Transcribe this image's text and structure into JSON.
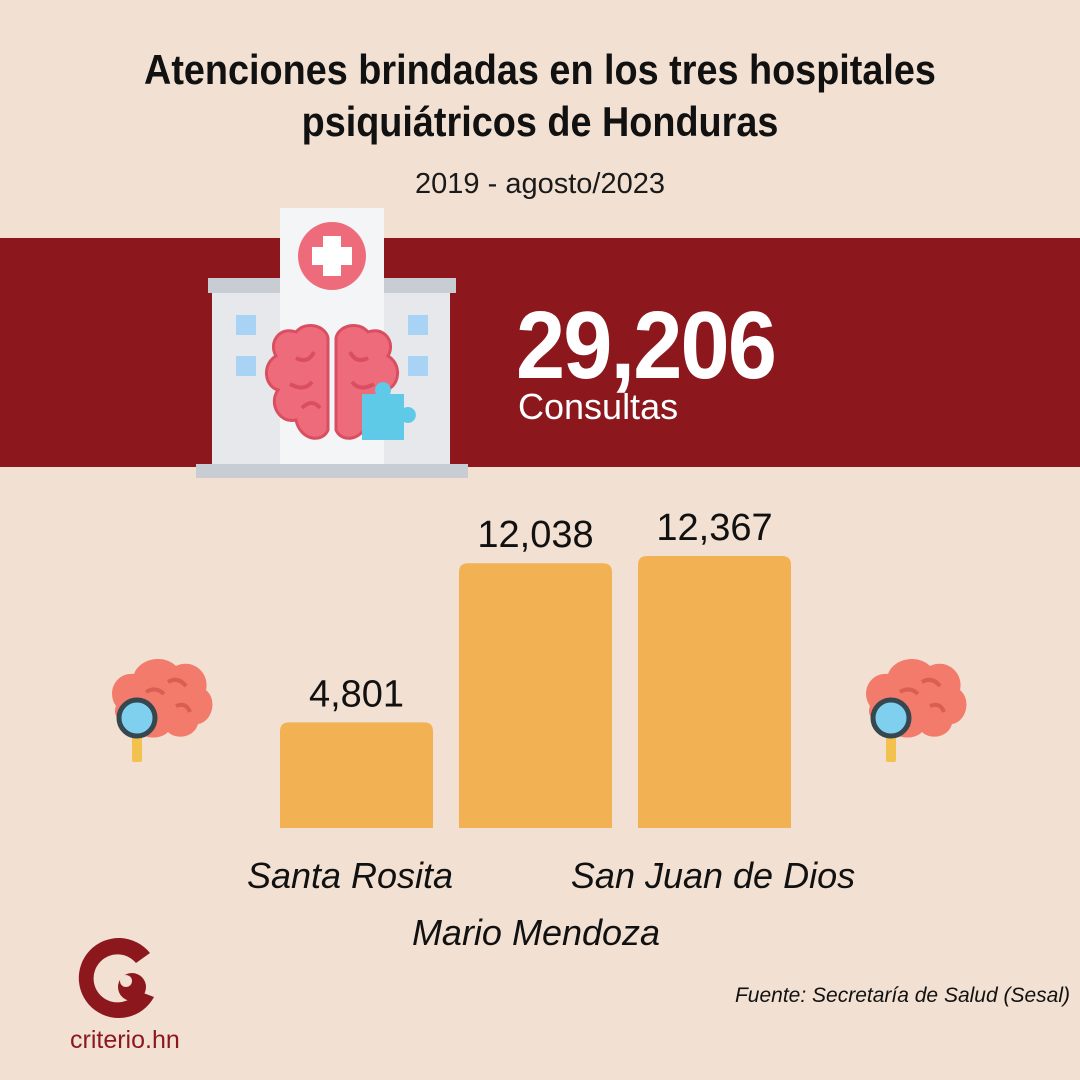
{
  "header": {
    "title_line1": "Atenciones brindadas en los tres hospitales",
    "title_line2": "psiquiátricos de Honduras",
    "subtitle": "2019 - agosto/2023"
  },
  "total": {
    "value": "29,206",
    "label": "Consultas"
  },
  "chart_data": {
    "type": "bar",
    "categories": [
      "Santa Rosita",
      "Mario Mendoza",
      "San Juan de Dios"
    ],
    "values": [
      4801,
      12038,
      12367
    ],
    "value_labels": [
      "4,801",
      "12,038",
      "12,367"
    ],
    "bar_color": "#f2b152",
    "ylim": [
      0,
      12367
    ],
    "grid": false
  },
  "footer": {
    "source": "Fuente: Secretaría de Salud (Sesal)",
    "logo_text": "criterio.hn"
  },
  "icons": [
    "hospital-brain-icon",
    "brain-magnifier-icon",
    "criterio-logo-icon"
  ],
  "colors": {
    "background": "#f2e0d2",
    "band": "#8c181e",
    "bar": "#f2b152",
    "accent_pink": "#ee6b7b"
  }
}
